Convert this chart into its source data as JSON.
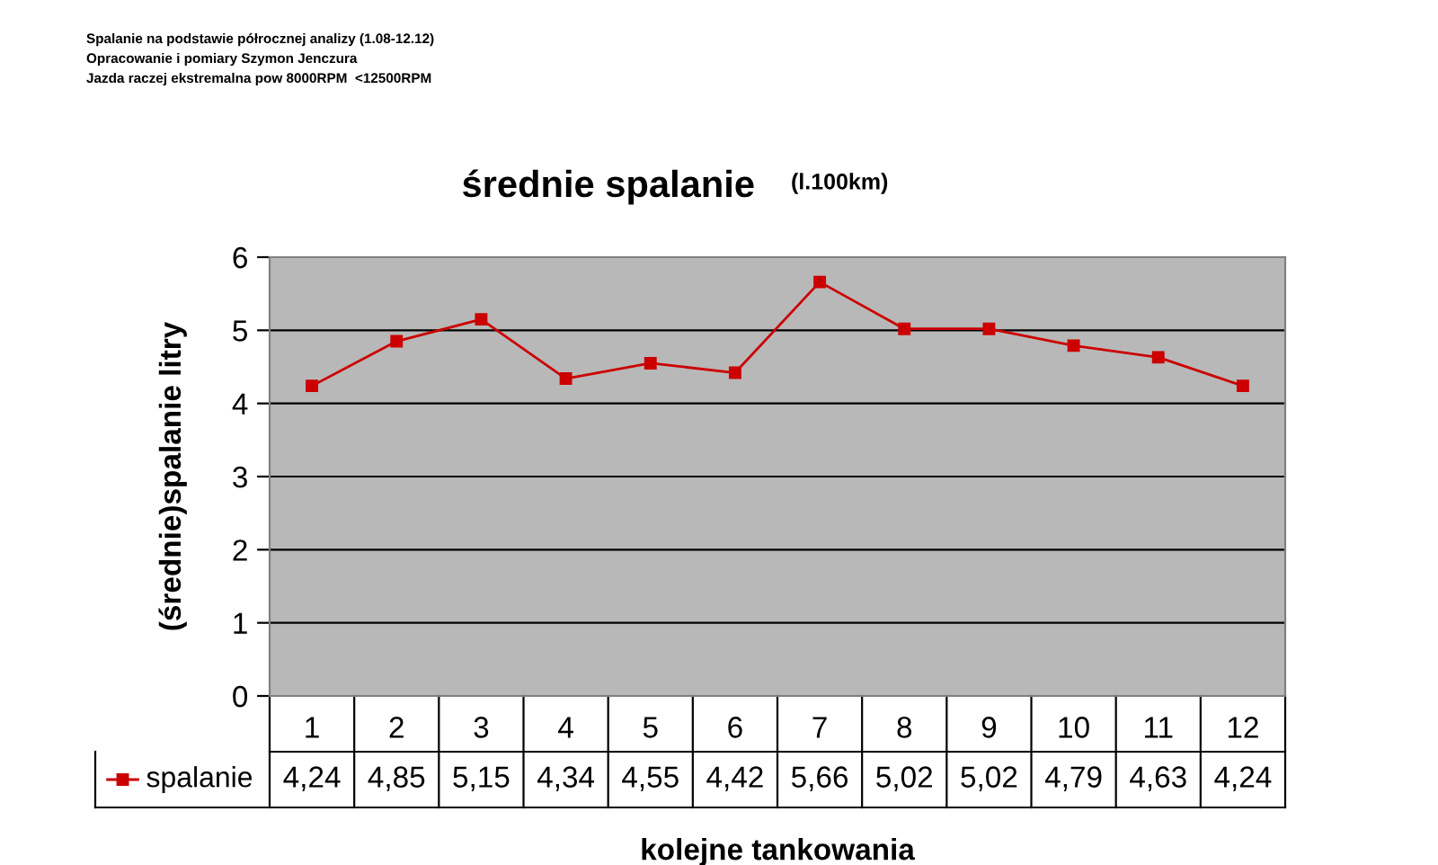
{
  "chart_data": {
    "type": "line",
    "title": "średnie spalanie",
    "subtitle": "(l.100km)",
    "xlabel": "kolejne tankowania",
    "ylabel": "(średnie)spalanie litry",
    "annotations": [
      "Spalanie na podstawie półrocznej analizy (1.08-12.12)",
      "Opracowanie i pomiary Szymon Jenczura",
      "Jazda raczej ekstremalna pow 8000RPM  <12500RPM"
    ],
    "categories": [
      "1",
      "2",
      "3",
      "4",
      "5",
      "6",
      "7",
      "8",
      "9",
      "10",
      "11",
      "12"
    ],
    "series": [
      {
        "name": "spalanie",
        "color": "#cc0000",
        "values": [
          4.24,
          4.85,
          5.15,
          4.34,
          4.55,
          4.42,
          5.66,
          5.02,
          5.02,
          4.79,
          4.63,
          4.24
        ],
        "value_labels": [
          "4,24",
          "4,85",
          "5,15",
          "4,34",
          "4,55",
          "4,42",
          "5,66",
          "5,02",
          "5,02",
          "4,79",
          "4,63",
          "4,24"
        ]
      }
    ],
    "ylim": [
      0,
      6
    ],
    "yticks": [
      0,
      1,
      2,
      3,
      4,
      5,
      6
    ],
    "grid": "y",
    "marker": "square",
    "line_style": "solid",
    "legend": "bottom left"
  }
}
